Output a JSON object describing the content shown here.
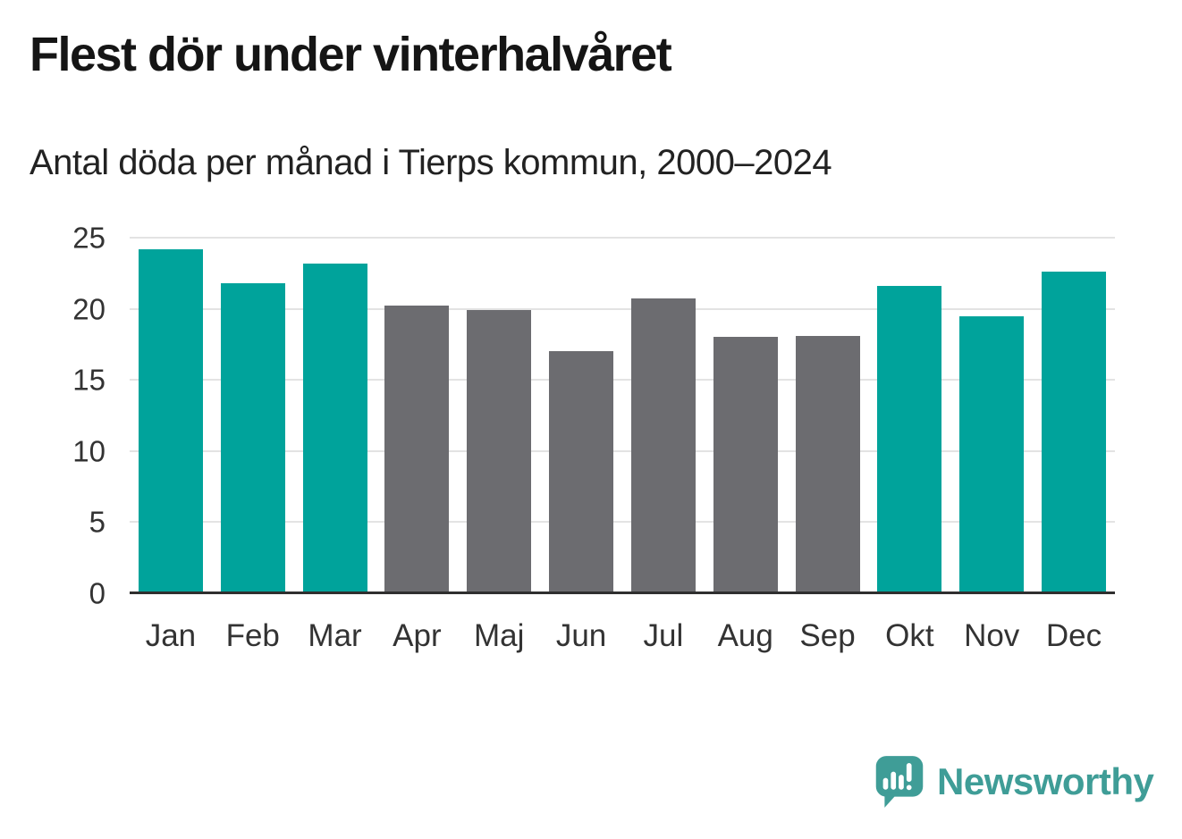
{
  "header": {
    "title": "Flest dör under vinterhalvåret",
    "subtitle": "Antal döda per månad i Tierps kommun, 2000–2024"
  },
  "chart_data": {
    "type": "bar",
    "title": "Flest dör under vinterhalvåret",
    "subtitle": "Antal döda per månad i Tierps kommun, 2000–2024",
    "categories": [
      "Jan",
      "Feb",
      "Mar",
      "Apr",
      "Maj",
      "Jun",
      "Jul",
      "Aug",
      "Sep",
      "Okt",
      "Nov",
      "Dec"
    ],
    "values": [
      24.2,
      21.8,
      23.2,
      20.2,
      19.9,
      17.0,
      20.7,
      18.0,
      18.1,
      21.6,
      19.5,
      22.6
    ],
    "groups": [
      "winter",
      "winter",
      "winter",
      "summer",
      "summer",
      "summer",
      "summer",
      "summer",
      "summer",
      "winter",
      "winter",
      "winter"
    ],
    "group_colors": {
      "winter": "#00a39b",
      "summer": "#6c6c70"
    },
    "xlabel": "",
    "ylabel": "",
    "ylim": [
      0,
      25
    ],
    "yticks": [
      0,
      5,
      10,
      15,
      20,
      25
    ],
    "grid": true,
    "legend": false
  },
  "colors": {
    "winter_bar": "#00a39b",
    "summer_bar": "#6c6c70",
    "gridline": "#e3e3e3",
    "axis_line": "#2f2f2f",
    "tick_label": "#333333",
    "logo": "#3f9d97"
  },
  "branding": {
    "logo_text": "Newsworthy",
    "logo_icon": "speech-bubble-bar-chart-icon"
  }
}
